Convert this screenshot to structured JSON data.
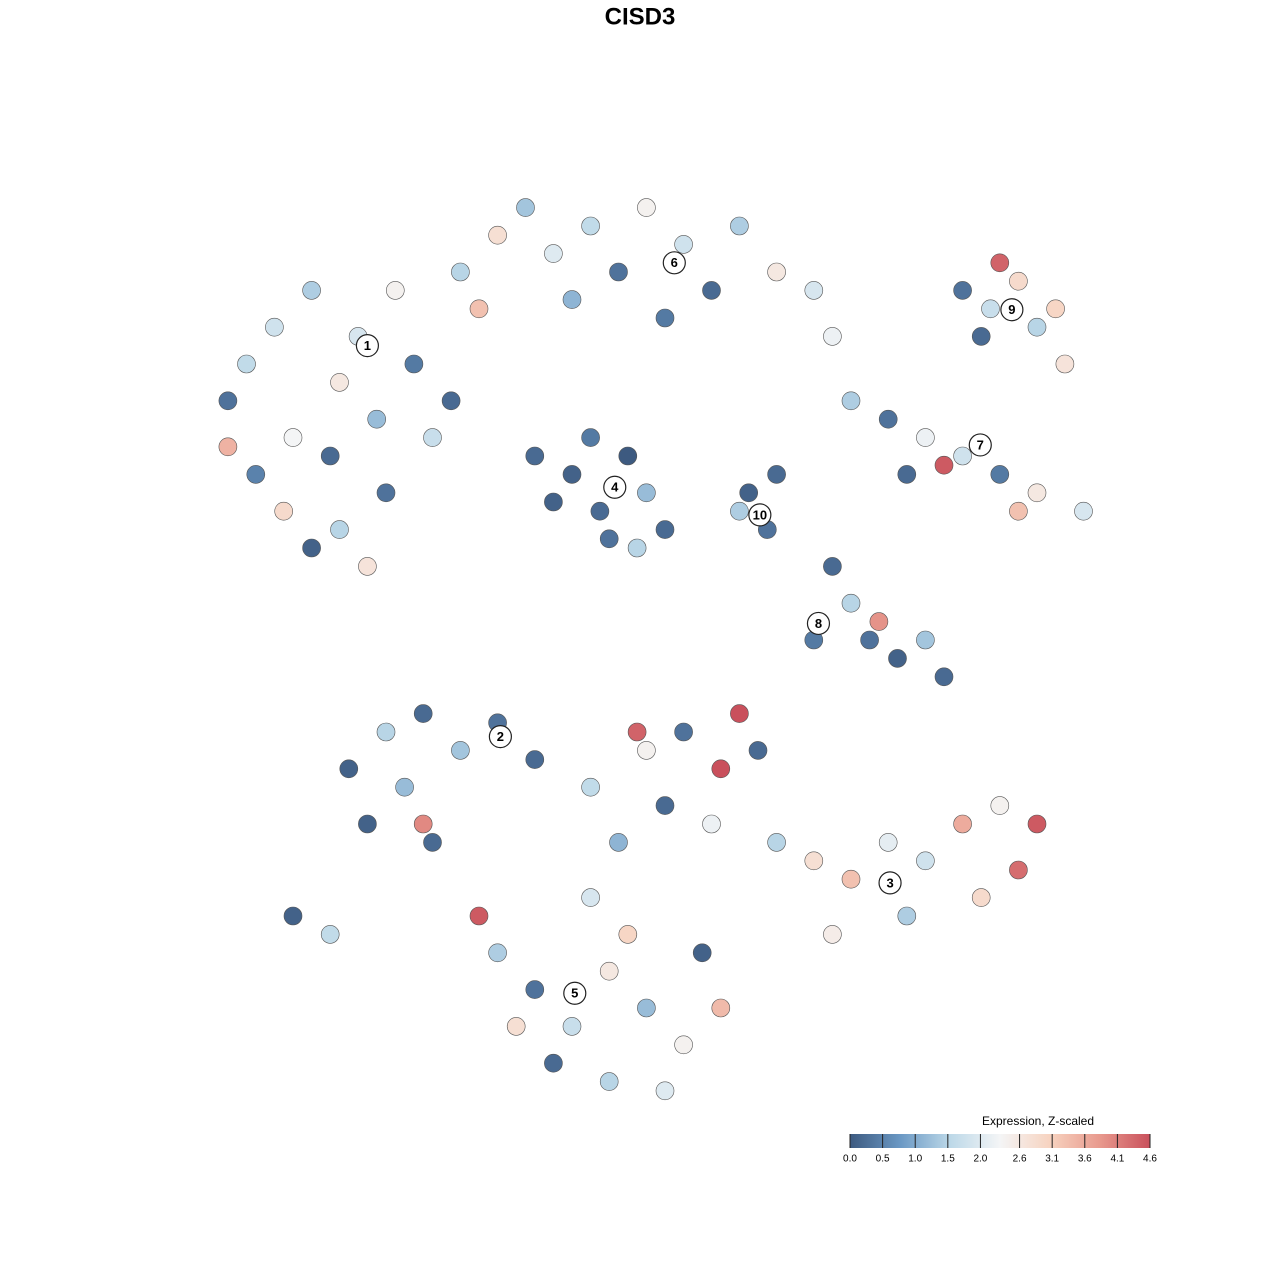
{
  "chart_data": {
    "type": "scatter",
    "title": "CISD3",
    "xlim": [
      0,
      100
    ],
    "ylim": [
      0,
      100
    ],
    "x": [
      3,
      5,
      8,
      10,
      12,
      14,
      15,
      17,
      19,
      21,
      23,
      25,
      9,
      12,
      15,
      18,
      6,
      20,
      3,
      27,
      28,
      32,
      35,
      38,
      42,
      45,
      48,
      52,
      55,
      58,
      62,
      66,
      30,
      50,
      40,
      68,
      40,
      43,
      46,
      48,
      44,
      38,
      50,
      42,
      47,
      36,
      59,
      61,
      58,
      62,
      82,
      85,
      88,
      90,
      84,
      92,
      86,
      93,
      70,
      74,
      78,
      82,
      86,
      90,
      95,
      80,
      88,
      76,
      68,
      70,
      72,
      75,
      78,
      80,
      66,
      73,
      16,
      20,
      24,
      28,
      32,
      18,
      22,
      25,
      10,
      14,
      24,
      36,
      42,
      48,
      52,
      56,
      60,
      55,
      62,
      66,
      70,
      74,
      78,
      82,
      86,
      88,
      90,
      84,
      76,
      68,
      45,
      50,
      47,
      58,
      32,
      36,
      40,
      44,
      48,
      52,
      56,
      38,
      44,
      50,
      34,
      46,
      30,
      54,
      42
    ],
    "y": [
      76,
      80,
      84,
      72,
      88,
      70,
      78,
      83,
      74,
      88,
      80,
      72,
      64,
      60,
      62,
      58,
      68,
      66,
      71,
      76,
      90,
      94,
      97,
      92,
      95,
      90,
      97,
      93,
      88,
      95,
      90,
      88,
      86,
      85,
      87,
      83,
      68,
      64,
      70,
      66,
      61,
      65,
      62,
      72,
      60,
      70,
      66,
      62,
      64,
      68,
      88,
      86,
      89,
      84,
      83,
      86,
      91,
      80,
      76,
      74,
      72,
      70,
      68,
      66,
      64,
      69,
      64,
      68,
      58,
      54,
      50,
      48,
      50,
      46,
      50,
      52,
      36,
      40,
      42,
      38,
      41,
      30,
      34,
      28,
      20,
      18,
      30,
      37,
      34,
      38,
      40,
      36,
      38,
      30,
      28,
      26,
      24,
      28,
      26,
      30,
      32,
      25,
      30,
      22,
      20,
      18,
      28,
      32,
      40,
      42,
      16,
      12,
      8,
      14,
      10,
      6,
      10,
      4,
      2,
      1,
      8,
      18,
      20,
      16,
      22
    ],
    "expression": [
      0.3,
      1.6,
      1.8,
      2.3,
      1.4,
      0.2,
      2.6,
      1.9,
      1.2,
      2.4,
      0.4,
      1.7,
      2.9,
      0.1,
      1.5,
      2.7,
      0.5,
      0.3,
      3.5,
      0.2,
      1.5,
      2.8,
      1.3,
      2.0,
      1.6,
      0.3,
      2.4,
      1.8,
      0.2,
      1.4,
      2.6,
      1.9,
      3.3,
      0.4,
      1.1,
      2.2,
      0.1,
      0.2,
      0.0,
      1.2,
      0.3,
      0.1,
      0.2,
      0.4,
      1.5,
      0.2,
      0.1,
      0.3,
      1.4,
      0.2,
      0.3,
      1.7,
      2.9,
      1.5,
      0.2,
      3.0,
      4.4,
      2.7,
      1.4,
      0.3,
      2.2,
      1.8,
      0.4,
      2.6,
      1.9,
      4.5,
      3.3,
      0.2,
      0.2,
      1.5,
      0.3,
      0.1,
      1.3,
      0.2,
      0.4,
      3.9,
      0.1,
      1.5,
      0.2,
      1.3,
      0.3,
      0.1,
      1.2,
      0.2,
      0.1,
      1.6,
      4.0,
      0.2,
      1.6,
      2.4,
      0.3,
      4.6,
      0.2,
      2.2,
      1.5,
      2.8,
      3.3,
      2.1,
      1.8,
      3.6,
      2.4,
      4.3,
      4.5,
      2.9,
      1.4,
      2.5,
      1.1,
      0.2,
      4.4,
      4.6,
      1.4,
      0.3,
      1.7,
      2.6,
      1.2,
      2.4,
      3.4,
      0.2,
      1.5,
      2.0,
      2.8,
      3.0,
      4.5,
      0.1,
      1.9
    ],
    "annotations": [
      {
        "label": "1",
        "x": 18,
        "y": 82
      },
      {
        "label": "6",
        "x": 51,
        "y": 91
      },
      {
        "label": "4",
        "x": 44.6,
        "y": 66.6
      },
      {
        "label": "10",
        "x": 60.2,
        "y": 63.6
      },
      {
        "label": "9",
        "x": 87.3,
        "y": 85.9
      },
      {
        "label": "7",
        "x": 83.9,
        "y": 71.2
      },
      {
        "label": "8",
        "x": 66.5,
        "y": 51.8
      },
      {
        "label": "2",
        "x": 32.3,
        "y": 39.5
      },
      {
        "label": "3",
        "x": 74.2,
        "y": 23.6
      },
      {
        "label": "5",
        "x": 40.3,
        "y": 11.6
      }
    ],
    "colorbar": {
      "title": "Expression, Z-scaled",
      "clim": [
        0,
        4.6
      ],
      "colormap": [
        "#3d5a80",
        "#6a98c4",
        "#bcd8e8",
        "#f4f5f6",
        "#f7d3c0",
        "#e8998d",
        "#c9505c"
      ],
      "ticks": [
        {
          "value": 0,
          "label": "0.0"
        },
        0.5,
        {
          "value": 1,
          "label": "1.0"
        },
        1.5,
        {
          "value": 2,
          "label": "2.0"
        },
        2.6,
        3.1,
        3.6,
        4.1,
        4.6
      ]
    }
  }
}
